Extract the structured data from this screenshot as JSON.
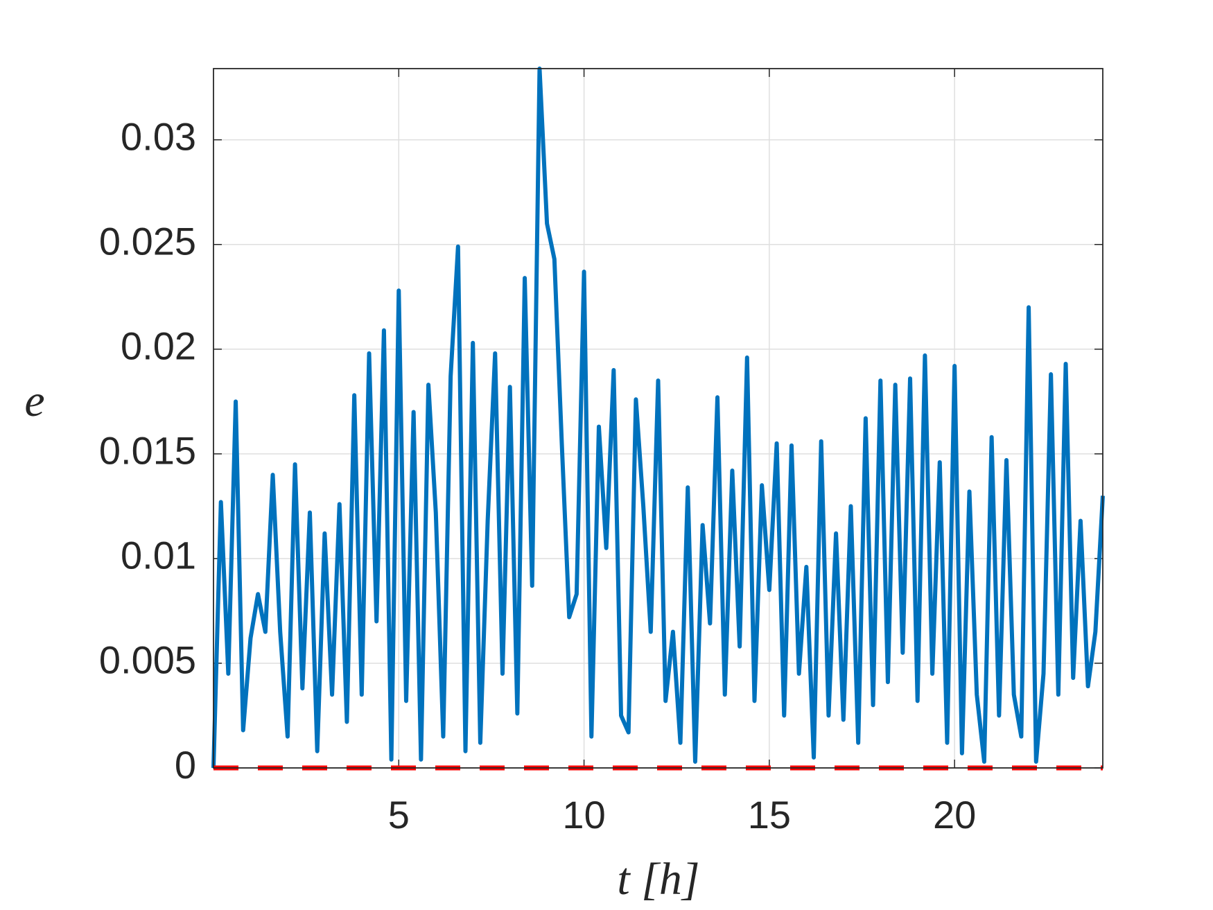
{
  "chart_data": {
    "type": "line",
    "xlabel": "t [h]",
    "ylabel": "e",
    "xlim": [
      0,
      24
    ],
    "ylim": [
      0,
      0.0334
    ],
    "xticks": [
      5,
      10,
      15,
      20
    ],
    "yticks": [
      0,
      0.005,
      0.01,
      0.015,
      0.02,
      0.025,
      0.03
    ],
    "grid": true,
    "series": [
      {
        "color": "#0072bd",
        "style": "solid",
        "x": [
          0,
          0.2,
          0.4,
          0.6,
          0.8,
          1,
          1.2,
          1.4,
          1.6,
          1.8,
          2,
          2.2,
          2.4,
          2.6,
          2.8,
          3,
          3.2,
          3.4,
          3.6,
          3.8,
          4,
          4.2,
          4.4,
          4.6,
          4.8,
          5,
          5.2,
          5.4,
          5.6,
          5.8,
          6,
          6.2,
          6.4,
          6.6,
          6.8,
          7,
          7.2,
          7.4,
          7.6,
          7.8,
          8,
          8.2,
          8.4,
          8.6,
          8.8,
          9,
          9.2,
          9.4,
          9.6,
          9.8,
          10,
          10.2,
          10.4,
          10.6,
          10.8,
          11,
          11.2,
          11.4,
          11.6,
          11.8,
          12,
          12.2,
          12.4,
          12.6,
          12.8,
          13,
          13.2,
          13.4,
          13.6,
          13.8,
          14,
          14.2,
          14.4,
          14.6,
          14.8,
          15,
          15.2,
          15.4,
          15.6,
          15.8,
          16,
          16.2,
          16.4,
          16.6,
          16.8,
          17,
          17.2,
          17.4,
          17.6,
          17.8,
          18,
          18.2,
          18.4,
          18.6,
          18.8,
          19,
          19.2,
          19.4,
          19.6,
          19.8,
          20,
          20.2,
          20.4,
          20.6,
          20.8,
          21,
          21.2,
          21.4,
          21.6,
          21.8,
          22,
          22.2,
          22.4,
          22.6,
          22.8,
          23,
          23.2,
          23.4,
          23.6,
          23.8,
          24
        ],
        "values": [
          0,
          0.0127,
          0.0045,
          0.0175,
          0.0018,
          0.0062,
          0.0083,
          0.0065,
          0.014,
          0.0065,
          0.0015,
          0.0145,
          0.0038,
          0.0122,
          0.0008,
          0.0112,
          0.0035,
          0.0126,
          0.0022,
          0.0178,
          0.0035,
          0.0198,
          0.007,
          0.0209,
          0.0004,
          0.0228,
          0.0032,
          0.017,
          0.0004,
          0.0183,
          0.0122,
          0.0015,
          0.0187,
          0.0249,
          0.0008,
          0.0203,
          0.0012,
          0.0118,
          0.0198,
          0.0045,
          0.0182,
          0.0026,
          0.0234,
          0.0087,
          0.0334,
          0.026,
          0.0243,
          0.0155,
          0.0072,
          0.0083,
          0.0237,
          0.0015,
          0.0163,
          0.0105,
          0.019,
          0.0025,
          0.0017,
          0.0176,
          0.0125,
          0.0065,
          0.0185,
          0.0032,
          0.0065,
          0.0012,
          0.0134,
          0.0003,
          0.0116,
          0.0069,
          0.0177,
          0.0035,
          0.0142,
          0.0058,
          0.0196,
          0.0032,
          0.0135,
          0.0085,
          0.0155,
          0.0025,
          0.0154,
          0.0045,
          0.0096,
          0.0005,
          0.0156,
          0.0025,
          0.0112,
          0.0023,
          0.0125,
          0.0012,
          0.0167,
          0.003,
          0.0185,
          0.0041,
          0.0183,
          0.0055,
          0.0186,
          0.0032,
          0.0197,
          0.0045,
          0.0146,
          0.0012,
          0.0192,
          0.0007,
          0.0132,
          0.0035,
          0.0003,
          0.0158,
          0.0025,
          0.0147,
          0.0035,
          0.0015,
          0.022,
          0.0003,
          0.0045,
          0.0188,
          0.0035,
          0.0193,
          0.0043,
          0.0118,
          0.0039,
          0.0065,
          0.013
        ]
      },
      {
        "color": "#ff0000",
        "style": "dashed",
        "x": [
          0,
          24
        ],
        "values": [
          0,
          0
        ]
      }
    ]
  }
}
